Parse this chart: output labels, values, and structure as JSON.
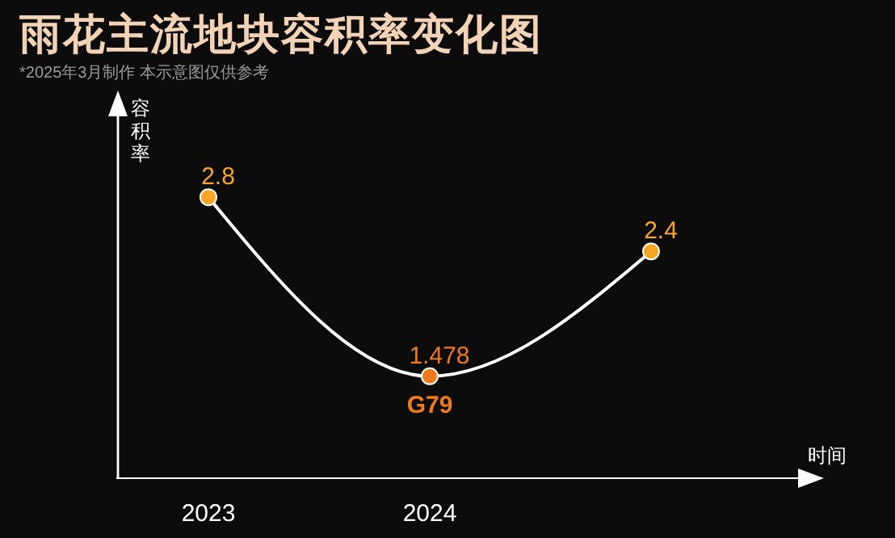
{
  "chart_data": {
    "type": "line",
    "title": "雨花主流地块容积率变化图",
    "subtitle": "*2025年3月制作 本示意图仅供参考",
    "xlabel": "时间",
    "ylabel": "容积率",
    "categories": [
      "2023",
      "2024",
      null
    ],
    "series": [
      {
        "color": "#ffffff",
        "colors": [
          "#f5a623",
          "#f07a1a",
          "#f5a623"
        ],
        "values": [
          2.8,
          1.478,
          2.4
        ]
      }
    ],
    "annotations": [
      {
        "text": "G79",
        "x": "2024",
        "y": 1.478
      }
    ],
    "data_labels": true,
    "marker": "circle",
    "line_style": "solid",
    "grid": false,
    "legend": false
  }
}
